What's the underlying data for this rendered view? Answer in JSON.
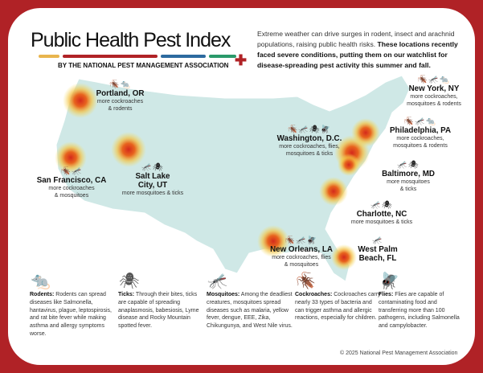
{
  "header": {
    "title": "Public Health Pest Index",
    "byline": "BY THE NATIONAL PEST MANAGEMENT ASSOCIATION",
    "intro_plain": "Extreme weather can drive surges in rodent, insect and arachnid populations, raising public health risks. ",
    "intro_bold": "These locations recently faced severe conditions, putting them on our watchlist for disease-spreading pest activity this summer and fall.",
    "bar_colors": [
      "#e8b54e",
      "#b02226",
      "#2d6a9f",
      "#2a9a6a"
    ]
  },
  "cities": [
    {
      "name": "Portland, OR",
      "pests": "more cockroaches\n& rodents",
      "icons": "🪳🐀"
    },
    {
      "name": "San Francisco, CA",
      "pests": "more cockroaches\n& mosquitoes",
      "icons": "🪳🦟"
    },
    {
      "name": "Salt Lake\nCity, UT",
      "pests": "more mosquitoes & ticks",
      "icons": "🦟🕷"
    },
    {
      "name": "Washington, D.C.",
      "pests": "more cockroaches, flies,\nmosquitoes & ticks",
      "icons": "🪳🦟🕷🪰"
    },
    {
      "name": "New York, NY",
      "pests": "more cockroaches,\nmosquitoes & rodents",
      "icons": "🪳🦟🐀"
    },
    {
      "name": "Philadelphia, PA",
      "pests": "more cockroaches,\nmosquitoes & rodents",
      "icons": "🪳🦟🐀"
    },
    {
      "name": "Baltimore, MD",
      "pests": "more mosquitoes\n& ticks",
      "icons": "🦟🕷"
    },
    {
      "name": "Charlotte, NC",
      "pests": "more mosquitoes & ticks",
      "icons": "🦟🕷"
    },
    {
      "name": "New Orleans, LA",
      "pests": "more cockroaches, flies\n& mosquitoes",
      "icons": "🪳🦟🪰"
    },
    {
      "name": "West Palm\nBeach, FL",
      "pests": "",
      "icons": "🦟"
    }
  ],
  "legend": [
    {
      "title": "Rodents:",
      "text": " Rodents can spread diseases like Salmonella, hantavirus, plague, leptospirosis, and rat bite fever while making asthma and allergy symptoms worse.",
      "icon": "rat-icon",
      "glyph": "🐀"
    },
    {
      "title": "Ticks:",
      "text": " Through their bites, ticks are capable of spreading anaplasmosis, babesiosis, Lyme disease and Rocky Mountain spotted fever.",
      "icon": "tick-icon",
      "glyph": "🕷"
    },
    {
      "title": "Mosquitoes:",
      "text": " Among the deadliest creatures, mosquitoes spread diseases such as malaria, yellow fever, dengue, EEE, Zika, Chikungunya, and West Nile virus.",
      "icon": "mosquito-icon",
      "glyph": "🦟"
    },
    {
      "title": "Cockroaches:",
      "text": " Cockroaches carry nearly 33 types of bacteria and can trigger asthma and allergic reactions, especially for children.",
      "icon": "cockroach-icon",
      "glyph": "🪳"
    },
    {
      "title": "Flies:",
      "text": " Flies are capable of contaminating food and transferring more than 100 pathogens, including Salmonella and campylobacter.",
      "icon": "fly-icon",
      "glyph": "🪰"
    }
  ],
  "copyright": "© 2025 National Pest Management Association"
}
